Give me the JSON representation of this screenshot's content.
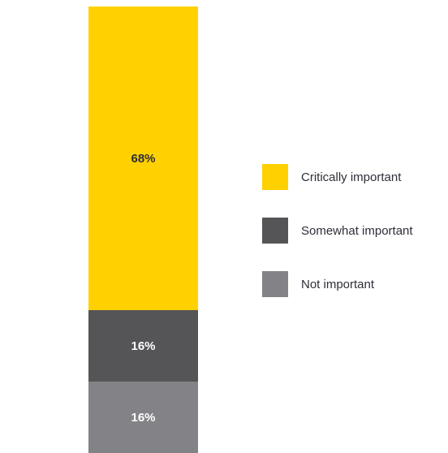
{
  "chart_data": {
    "type": "bar",
    "stacked": true,
    "categories": [
      ""
    ],
    "series": [
      {
        "name": "Critically important",
        "values": [
          68
        ],
        "label": "68%",
        "color": "#ffd100",
        "label_color": "#2e2e38"
      },
      {
        "name": "Somewhat important",
        "values": [
          16
        ],
        "label": "16%",
        "color": "#555557",
        "label_color": "#ffffff"
      },
      {
        "name": "Not important",
        "values": [
          16
        ],
        "label": "16%",
        "color": "#828287",
        "label_color": "#ffffff"
      }
    ],
    "ylim": [
      0,
      100
    ],
    "title": "",
    "xlabel": "",
    "ylabel": "",
    "grid": false,
    "legend_position": "right"
  }
}
